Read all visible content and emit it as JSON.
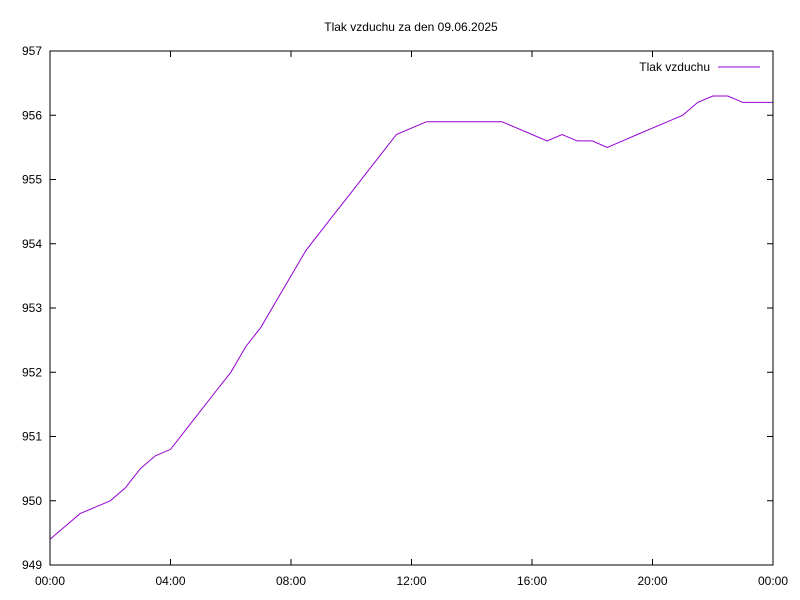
{
  "chart_data": {
    "type": "line",
    "title": "Tlak vzduchu za den 09.06.2025",
    "xlabel": "",
    "ylabel": "",
    "xlim": [
      "00:00",
      "24:00"
    ],
    "ylim": [
      949,
      957
    ],
    "x_ticks": [
      "00:00",
      "04:00",
      "08:00",
      "12:00",
      "16:00",
      "20:00",
      "00:00"
    ],
    "y_ticks": [
      "949",
      "950",
      "951",
      "952",
      "953",
      "954",
      "955",
      "956",
      "957"
    ],
    "grid": false,
    "legend_position": "top-right",
    "series": [
      {
        "name": "Tlak vzduchu",
        "color": "#9400d3",
        "x": [
          "00:00",
          "00:30",
          "01:00",
          "01:30",
          "02:00",
          "02:30",
          "03:00",
          "03:30",
          "04:00",
          "04:30",
          "05:00",
          "05:30",
          "06:00",
          "06:30",
          "07:00",
          "07:30",
          "08:00",
          "08:30",
          "09:00",
          "09:30",
          "10:00",
          "10:30",
          "11:00",
          "11:30",
          "12:00",
          "12:30",
          "13:00",
          "13:30",
          "14:00",
          "14:30",
          "15:00",
          "15:30",
          "16:00",
          "16:30",
          "17:00",
          "17:30",
          "18:00",
          "18:30",
          "19:00",
          "19:30",
          "20:00",
          "20:30",
          "21:00",
          "21:30",
          "22:00",
          "22:30",
          "23:00",
          "23:30",
          "24:00"
        ],
        "values": [
          949.4,
          949.6,
          949.8,
          949.9,
          950.0,
          950.2,
          950.5,
          950.7,
          950.8,
          951.1,
          951.4,
          951.7,
          952.0,
          952.4,
          952.7,
          953.1,
          953.5,
          953.9,
          954.2,
          954.5,
          954.8,
          955.1,
          955.4,
          955.7,
          955.8,
          955.9,
          955.9,
          955.9,
          955.9,
          955.9,
          955.9,
          955.8,
          955.7,
          955.6,
          955.7,
          955.6,
          955.6,
          955.5,
          955.6,
          955.7,
          955.8,
          955.9,
          956.0,
          956.2,
          956.3,
          956.3,
          956.2,
          956.2,
          956.2
        ]
      }
    ]
  }
}
